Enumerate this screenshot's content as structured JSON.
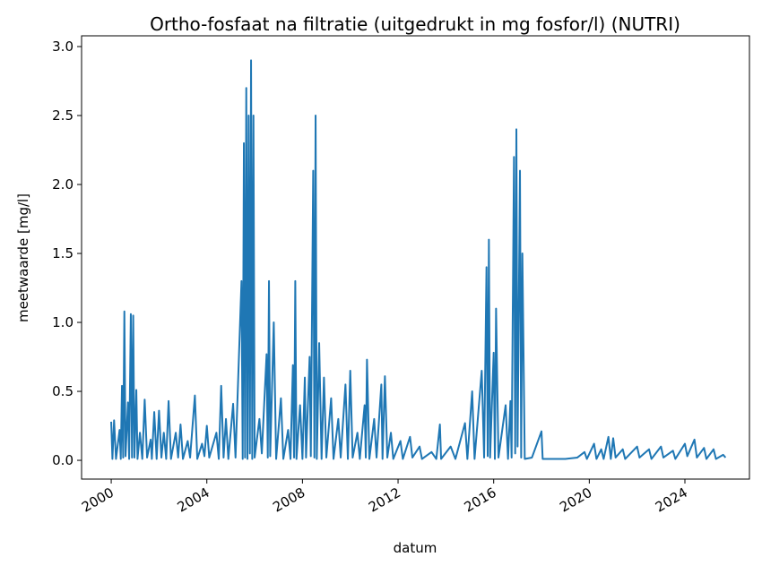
{
  "chart_data": {
    "type": "line",
    "title": "Ortho-fosfaat na filtratie (uitgedrukt in mg fosfor/l) (NUTRI)",
    "x_label": "datum",
    "y_label": "meetwaarde [mg/l]",
    "color": "#1f77b4",
    "x": [
      2000.0,
      2000.05,
      2000.12,
      2000.2,
      2000.35,
      2000.4,
      2000.45,
      2000.5,
      2000.55,
      2000.6,
      2000.7,
      2000.75,
      2000.82,
      2000.87,
      2000.92,
      2000.97,
      2001.05,
      2001.1,
      2001.2,
      2001.3,
      2001.4,
      2001.5,
      2001.65,
      2001.7,
      2001.8,
      2001.9,
      2002.0,
      2002.1,
      2002.2,
      2002.3,
      2002.4,
      2002.5,
      2002.7,
      2002.8,
      2002.9,
      2003.0,
      2003.2,
      2003.3,
      2003.5,
      2003.6,
      2003.8,
      2003.9,
      2004.0,
      2004.1,
      2004.4,
      2004.5,
      2004.6,
      2004.7,
      2004.8,
      2004.9,
      2005.1,
      2005.2,
      2005.45,
      2005.5,
      2005.55,
      2005.6,
      2005.65,
      2005.7,
      2005.75,
      2005.8,
      2005.85,
      2005.9,
      2005.95,
      2006.0,
      2006.2,
      2006.3,
      2006.5,
      2006.55,
      2006.6,
      2006.65,
      2006.8,
      2006.9,
      2007.1,
      2007.2,
      2007.4,
      2007.5,
      2007.6,
      2007.65,
      2007.7,
      2007.75,
      2007.9,
      2008.0,
      2008.1,
      2008.15,
      2008.3,
      2008.35,
      2008.45,
      2008.5,
      2008.55,
      2008.6,
      2008.7,
      2008.8,
      2008.9,
      2009.0,
      2009.2,
      2009.3,
      2009.5,
      2009.6,
      2009.8,
      2009.9,
      2010.0,
      2010.1,
      2010.3,
      2010.4,
      2010.6,
      2010.65,
      2010.7,
      2010.8,
      2011.0,
      2011.1,
      2011.3,
      2011.35,
      2011.45,
      2011.55,
      2011.7,
      2011.8,
      2012.1,
      2012.2,
      2012.5,
      2012.6,
      2012.9,
      2013.0,
      2013.4,
      2013.6,
      2013.75,
      2013.8,
      2014.2,
      2014.4,
      2014.8,
      2014.9,
      2015.1,
      2015.2,
      2015.5,
      2015.6,
      2015.7,
      2015.75,
      2015.8,
      2015.85,
      2016.0,
      2016.05,
      2016.1,
      2016.2,
      2016.5,
      2016.6,
      2016.7,
      2016.75,
      2016.85,
      2016.9,
      2016.95,
      2017.0,
      2017.1,
      2017.15,
      2017.2,
      2017.3,
      2017.6,
      2018.0,
      2018.05,
      2018.5,
      2019.0,
      2019.5,
      2019.8,
      2019.9,
      2020.2,
      2020.3,
      2020.5,
      2020.6,
      2020.8,
      2020.9,
      2021.0,
      2021.1,
      2021.4,
      2021.5,
      2022.0,
      2022.1,
      2022.5,
      2022.6,
      2023.0,
      2023.1,
      2023.5,
      2023.6,
      2024.0,
      2024.1,
      2024.4,
      2024.5,
      2024.8,
      2024.9,
      2025.2,
      2025.3,
      2025.6,
      2025.7
    ],
    "values": [
      0.28,
      0.01,
      0.29,
      0.01,
      0.22,
      0.01,
      0.54,
      0.02,
      1.08,
      0.03,
      0.42,
      0.01,
      1.06,
      0.02,
      1.05,
      0.02,
      0.51,
      0.01,
      0.2,
      0.01,
      0.44,
      0.02,
      0.15,
      0.01,
      0.35,
      0.01,
      0.36,
      0.02,
      0.2,
      0.01,
      0.43,
      0.01,
      0.2,
      0.02,
      0.26,
      0.01,
      0.14,
      0.02,
      0.47,
      0.01,
      0.12,
      0.03,
      0.25,
      0.02,
      0.2,
      0.01,
      0.54,
      0.02,
      0.3,
      0.01,
      0.41,
      0.02,
      1.3,
      0.01,
      2.3,
      0.02,
      2.7,
      0.01,
      2.5,
      0.05,
      2.9,
      0.01,
      2.5,
      0.02,
      0.3,
      0.05,
      0.77,
      0.02,
      1.3,
      0.03,
      1.0,
      0.01,
      0.45,
      0.01,
      0.22,
      0.01,
      0.69,
      0.02,
      1.3,
      0.01,
      0.4,
      0.01,
      0.6,
      0.02,
      0.75,
      0.03,
      2.1,
      0.02,
      2.5,
      0.01,
      0.85,
      0.01,
      0.6,
      0.02,
      0.45,
      0.01,
      0.3,
      0.02,
      0.55,
      0.01,
      0.65,
      0.02,
      0.2,
      0.01,
      0.4,
      0.02,
      0.73,
      0.01,
      0.3,
      0.02,
      0.55,
      0.01,
      0.61,
      0.02,
      0.2,
      0.01,
      0.14,
      0.01,
      0.17,
      0.02,
      0.1,
      0.01,
      0.06,
      0.01,
      0.26,
      0.01,
      0.1,
      0.01,
      0.27,
      0.01,
      0.5,
      0.01,
      0.65,
      0.02,
      1.4,
      0.03,
      1.6,
      0.02,
      0.78,
      0.01,
      1.1,
      0.02,
      0.4,
      0.01,
      0.43,
      0.02,
      2.2,
      0.05,
      2.4,
      0.1,
      2.1,
      0.02,
      1.5,
      0.01,
      0.02,
      0.21,
      0.01,
      0.01,
      0.01,
      0.02,
      0.06,
      0.01,
      0.12,
      0.01,
      0.08,
      0.01,
      0.17,
      0.01,
      0.16,
      0.02,
      0.08,
      0.01,
      0.1,
      0.02,
      0.08,
      0.01,
      0.1,
      0.02,
      0.07,
      0.01,
      0.12,
      0.03,
      0.15,
      0.02,
      0.09,
      0.01,
      0.08,
      0.01,
      0.04,
      0.02
    ],
    "xlim": [
      1998.76,
      2026.7
    ],
    "xticks": [
      2000,
      2004,
      2008,
      2012,
      2016,
      2020,
      2024
    ],
    "ylim": [
      -0.136,
      3.078
    ],
    "yticks": [
      {
        "value": 0,
        "label": "0.0"
      },
      0.5,
      {
        "value": 1,
        "label": "1.0"
      },
      1.5,
      {
        "value": 2,
        "label": "2.0"
      },
      2.5,
      {
        "value": 3,
        "label": "3.0"
      }
    ]
  }
}
